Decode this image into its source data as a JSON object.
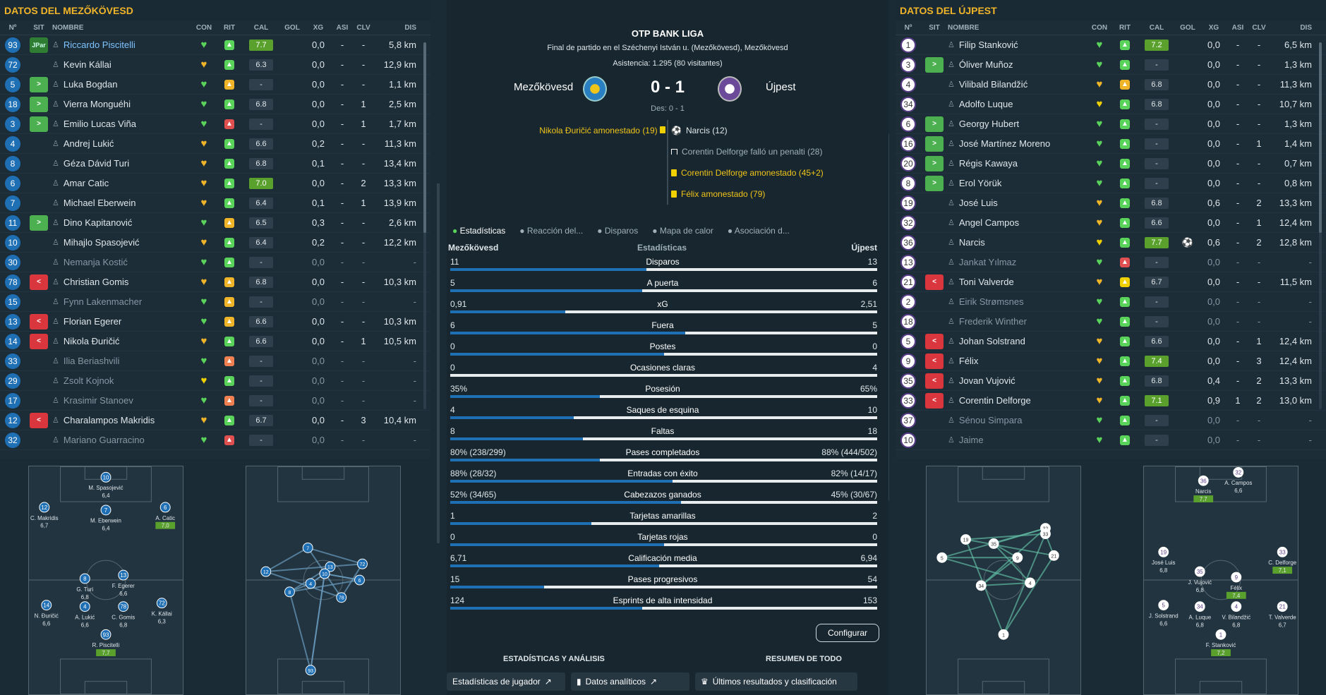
{
  "left": {
    "title": "DATOS DEL MEZŐKÖVESD",
    "headers": [
      "Nº",
      "SIT",
      "NOMBRE",
      "CON",
      "RIT",
      "CAL",
      "GOL",
      "XG",
      "ASI",
      "CLV",
      "DIS"
    ],
    "players": [
      {
        "num": "93",
        "sit": "JPar",
        "name": "Riccardo Piscitelli",
        "con": "#5ad35a",
        "rit": "#5ad35a",
        "cal": "7.7",
        "gol": "",
        "xg": "0,0",
        "asi": "-",
        "clv": "-",
        "dis": "5,8 km",
        "hi": true,
        "dim": false
      },
      {
        "num": "72",
        "sit": "",
        "name": "Kevin Kállai",
        "con": "#f0b429",
        "rit": "#5ad35a",
        "cal": "6.3",
        "gol": "",
        "xg": "0,0",
        "asi": "-",
        "clv": "-",
        "dis": "12,9 km",
        "hi": false,
        "dim": false
      },
      {
        "num": "5",
        "sit": "in",
        "name": "Luka Bogdan",
        "con": "#5ad35a",
        "rit": "#f0b429",
        "cal": "-",
        "gol": "",
        "xg": "0,0",
        "asi": "-",
        "clv": "-",
        "dis": "1,1 km",
        "hi": false,
        "dim": false
      },
      {
        "num": "18",
        "sit": "in",
        "name": "Vierra Monguéhi",
        "con": "#5ad35a",
        "rit": "#5ad35a",
        "cal": "6.8",
        "gol": "",
        "xg": "0,0",
        "asi": "-",
        "clv": "1",
        "dis": "2,5 km",
        "hi": false,
        "dim": false
      },
      {
        "num": "3",
        "sit": "in",
        "name": "Emilio Lucas Viña",
        "con": "#5ad35a",
        "rit": "#e05050",
        "cal": "-",
        "gol": "",
        "xg": "0,0",
        "asi": "-",
        "clv": "1",
        "dis": "1,7 km",
        "hi": false,
        "dim": false
      },
      {
        "num": "4",
        "sit": "",
        "name": "Andrej Lukić",
        "con": "#f0b429",
        "rit": "#5ad35a",
        "cal": "6.6",
        "gol": "",
        "xg": "0,2",
        "asi": "-",
        "clv": "-",
        "dis": "11,3 km",
        "hi": false,
        "dim": false
      },
      {
        "num": "8",
        "sit": "",
        "name": "Géza Dávid Turi",
        "con": "#f0b429",
        "rit": "#5ad35a",
        "cal": "6.8",
        "gol": "",
        "xg": "0,1",
        "asi": "-",
        "clv": "-",
        "dis": "13,4 km",
        "hi": false,
        "dim": false
      },
      {
        "num": "6",
        "sit": "",
        "name": "Amar Catic",
        "con": "#f0b429",
        "rit": "#5ad35a",
        "cal": "7.0",
        "gol": "",
        "xg": "0,0",
        "asi": "-",
        "clv": "2",
        "dis": "13,3 km",
        "hi": true,
        "dim": false
      },
      {
        "num": "7",
        "sit": "",
        "name": "Michael Eberwein",
        "con": "#f0b429",
        "rit": "#5ad35a",
        "cal": "6.4",
        "gol": "",
        "xg": "0,1",
        "asi": "-",
        "clv": "1",
        "dis": "13,9 km",
        "hi": false,
        "dim": false
      },
      {
        "num": "11",
        "sit": "in",
        "name": "Dino Kapitanović",
        "con": "#5ad35a",
        "rit": "#f0b429",
        "cal": "6.5",
        "gol": "",
        "xg": "0,3",
        "asi": "-",
        "clv": "-",
        "dis": "2,6 km",
        "hi": false,
        "dim": false
      },
      {
        "num": "10",
        "sit": "",
        "name": "Mihajlo Spasojević",
        "con": "#f0b429",
        "rit": "#5ad35a",
        "cal": "6.4",
        "gol": "",
        "xg": "0,2",
        "asi": "-",
        "clv": "-",
        "dis": "12,2 km",
        "hi": false,
        "dim": false
      },
      {
        "num": "30",
        "sit": "",
        "name": "Nemanja Kostić",
        "con": "#5ad35a",
        "rit": "#5ad35a",
        "cal": "-",
        "gol": "",
        "xg": "0,0",
        "asi": "-",
        "clv": "-",
        "dis": "-",
        "hi": false,
        "dim": true
      },
      {
        "num": "78",
        "sit": "out",
        "name": "Christian Gomis",
        "con": "#f0b429",
        "rit": "#f0b429",
        "cal": "6.8",
        "gol": "",
        "xg": "0,0",
        "asi": "-",
        "clv": "-",
        "dis": "10,3 km",
        "hi": false,
        "dim": false
      },
      {
        "num": "15",
        "sit": "",
        "name": "Fynn Lakenmacher",
        "con": "#5ad35a",
        "rit": "#f0b429",
        "cal": "-",
        "gol": "",
        "xg": "0,0",
        "asi": "-",
        "clv": "-",
        "dis": "-",
        "hi": false,
        "dim": true
      },
      {
        "num": "13",
        "sit": "out",
        "name": "Florian Egerer",
        "con": "#5ad35a",
        "rit": "#f0b429",
        "cal": "6.6",
        "gol": "",
        "xg": "0,0",
        "asi": "-",
        "clv": "-",
        "dis": "10,3 km",
        "hi": false,
        "dim": false
      },
      {
        "num": "14",
        "sit": "out",
        "name": "Nikola Đuričić",
        "con": "#f0b429",
        "rit": "#5ad35a",
        "cal": "6.6",
        "gol": "",
        "xg": "0,0",
        "asi": "-",
        "clv": "1",
        "dis": "10,5 km",
        "hi": false,
        "dim": false
      },
      {
        "num": "33",
        "sit": "",
        "name": "Ilia Beriashvili",
        "con": "#5ad35a",
        "rit": "#f08050",
        "cal": "-",
        "gol": "",
        "xg": "0,0",
        "asi": "-",
        "clv": "-",
        "dis": "-",
        "hi": false,
        "dim": true
      },
      {
        "num": "29",
        "sit": "",
        "name": "Zsolt Kojnok",
        "con": "#f0d000",
        "rit": "#5ad35a",
        "cal": "-",
        "gol": "",
        "xg": "0,0",
        "asi": "-",
        "clv": "-",
        "dis": "-",
        "hi": false,
        "dim": true
      },
      {
        "num": "17",
        "sit": "",
        "name": "Krasimir Stanoev",
        "con": "#5ad35a",
        "rit": "#f08050",
        "cal": "-",
        "gol": "",
        "xg": "0,0",
        "asi": "-",
        "clv": "-",
        "dis": "-",
        "hi": false,
        "dim": true
      },
      {
        "num": "12",
        "sit": "out",
        "name": "Charalampos Makridis",
        "con": "#f0b429",
        "rit": "#5ad35a",
        "cal": "6.7",
        "gol": "",
        "xg": "0,0",
        "asi": "-",
        "clv": "3",
        "dis": "10,4 km",
        "hi": false,
        "dim": false
      },
      {
        "num": "32",
        "sit": "",
        "name": "Mariano Guarracino",
        "con": "#5ad35a",
        "rit": "#e05050",
        "cal": "-",
        "gol": "",
        "xg": "0,0",
        "asi": "-",
        "clv": "-",
        "dis": "-",
        "hi": false,
        "dim": true
      }
    ]
  },
  "right": {
    "title": "DATOS DEL ÚJPEST",
    "headers": [
      "Nº",
      "SIT",
      "NOMBRE",
      "CON",
      "RIT",
      "CAL",
      "GOL",
      "XG",
      "ASI",
      "CLV",
      "DIS"
    ],
    "players": [
      {
        "num": "1",
        "sit": "",
        "name": "Filip Stanković",
        "con": "#5ad35a",
        "rit": "#5ad35a",
        "cal": "7.2",
        "gol": "",
        "xg": "0,0",
        "asi": "-",
        "clv": "-",
        "dis": "6,5 km",
        "hi": true,
        "dim": false
      },
      {
        "num": "3",
        "sit": "in",
        "name": "Óliver Muñoz",
        "con": "#5ad35a",
        "rit": "#5ad35a",
        "cal": "-",
        "gol": "",
        "xg": "0,0",
        "asi": "-",
        "clv": "-",
        "dis": "1,3 km",
        "hi": false,
        "dim": false
      },
      {
        "num": "4",
        "sit": "",
        "name": "Vilibald Bilandžić",
        "con": "#f0b429",
        "rit": "#f0b429",
        "cal": "6.8",
        "gol": "",
        "xg": "0,0",
        "asi": "-",
        "clv": "-",
        "dis": "11,3 km",
        "hi": false,
        "dim": false
      },
      {
        "num": "34",
        "sit": "",
        "name": "Adolfo Luque",
        "con": "#f0d000",
        "rit": "#5ad35a",
        "cal": "6.8",
        "gol": "",
        "xg": "0,0",
        "asi": "-",
        "clv": "-",
        "dis": "10,7 km",
        "hi": false,
        "dim": false
      },
      {
        "num": "6",
        "sit": "in",
        "name": "Georgy Hubert",
        "con": "#5ad35a",
        "rit": "#5ad35a",
        "cal": "-",
        "gol": "",
        "xg": "0,0",
        "asi": "-",
        "clv": "-",
        "dis": "1,3 km",
        "hi": false,
        "dim": false
      },
      {
        "num": "16",
        "sit": "in",
        "name": "José Martínez Moreno",
        "con": "#5ad35a",
        "rit": "#5ad35a",
        "cal": "-",
        "gol": "",
        "xg": "0,0",
        "asi": "-",
        "clv": "1",
        "dis": "1,4 km",
        "hi": false,
        "dim": false
      },
      {
        "num": "20",
        "sit": "in",
        "name": "Régis Kawaya",
        "con": "#5ad35a",
        "rit": "#5ad35a",
        "cal": "-",
        "gol": "",
        "xg": "0,0",
        "asi": "-",
        "clv": "-",
        "dis": "0,7 km",
        "hi": false,
        "dim": false
      },
      {
        "num": "8",
        "sit": "in",
        "name": "Erol Yörük",
        "con": "#5ad35a",
        "rit": "#5ad35a",
        "cal": "-",
        "gol": "",
        "xg": "0,0",
        "asi": "-",
        "clv": "-",
        "dis": "0,8 km",
        "hi": false,
        "dim": false
      },
      {
        "num": "19",
        "sit": "",
        "name": "José Luis",
        "con": "#f0b429",
        "rit": "#5ad35a",
        "cal": "6.8",
        "gol": "",
        "xg": "0,6",
        "asi": "-",
        "clv": "2",
        "dis": "13,3 km",
        "hi": false,
        "dim": false
      },
      {
        "num": "32",
        "sit": "",
        "name": "Angel Campos",
        "con": "#f0b429",
        "rit": "#5ad35a",
        "cal": "6.6",
        "gol": "",
        "xg": "0,0",
        "asi": "-",
        "clv": "1",
        "dis": "12,4 km",
        "hi": false,
        "dim": false
      },
      {
        "num": "36",
        "sit": "",
        "name": "Narcis",
        "con": "#f0d000",
        "rit": "#5ad35a",
        "cal": "7.7",
        "gol": "⚽",
        "xg": "0,6",
        "asi": "-",
        "clv": "2",
        "dis": "12,8 km",
        "hi": true,
        "dim": false
      },
      {
        "num": "13",
        "sit": "",
        "name": "Jankat Yılmaz",
        "con": "#5ad35a",
        "rit": "#e05050",
        "cal": "-",
        "gol": "",
        "xg": "0,0",
        "asi": "-",
        "clv": "-",
        "dis": "-",
        "hi": false,
        "dim": true
      },
      {
        "num": "21",
        "sit": "out",
        "name": "Toni Valverde",
        "con": "#f0b429",
        "rit": "#f0d000",
        "cal": "6.7",
        "gol": "",
        "xg": "0,0",
        "asi": "-",
        "clv": "-",
        "dis": "11,5 km",
        "hi": false,
        "dim": false
      },
      {
        "num": "2",
        "sit": "",
        "name": "Eirik Strømsnes",
        "con": "#5ad35a",
        "rit": "#5ad35a",
        "cal": "-",
        "gol": "",
        "xg": "0,0",
        "asi": "-",
        "clv": "-",
        "dis": "-",
        "hi": false,
        "dim": true
      },
      {
        "num": "18",
        "sit": "",
        "name": "Frederik Winther",
        "con": "#5ad35a",
        "rit": "#5ad35a",
        "cal": "-",
        "gol": "",
        "xg": "0,0",
        "asi": "-",
        "clv": "-",
        "dis": "-",
        "hi": false,
        "dim": true
      },
      {
        "num": "5",
        "sit": "out",
        "name": "Johan Solstrand",
        "con": "#f0b429",
        "rit": "#5ad35a",
        "cal": "6.6",
        "gol": "",
        "xg": "0,0",
        "asi": "-",
        "clv": "1",
        "dis": "12,4 km",
        "hi": false,
        "dim": false
      },
      {
        "num": "9",
        "sit": "out",
        "name": "Félix",
        "con": "#f0b429",
        "rit": "#5ad35a",
        "cal": "7.4",
        "gol": "",
        "xg": "0,0",
        "asi": "-",
        "clv": "3",
        "dis": "12,4 km",
        "hi": true,
        "dim": false
      },
      {
        "num": "35",
        "sit": "out",
        "name": "Jovan Vujović",
        "con": "#f0b429",
        "rit": "#5ad35a",
        "cal": "6.8",
        "gol": "",
        "xg": "0,4",
        "asi": "-",
        "clv": "2",
        "dis": "13,3 km",
        "hi": false,
        "dim": false
      },
      {
        "num": "33",
        "sit": "out",
        "name": "Corentin Delforge",
        "con": "#f0b429",
        "rit": "#5ad35a",
        "cal": "7.1",
        "gol": "",
        "xg": "0,9",
        "asi": "1",
        "clv": "2",
        "dis": "13,0 km",
        "hi": true,
        "dim": false
      },
      {
        "num": "37",
        "sit": "",
        "name": "Sénou Simpara",
        "con": "#5ad35a",
        "rit": "#5ad35a",
        "cal": "-",
        "gol": "",
        "xg": "0,0",
        "asi": "-",
        "clv": "-",
        "dis": "-",
        "hi": false,
        "dim": true
      },
      {
        "num": "10",
        "sit": "",
        "name": "Jaime",
        "con": "#5ad35a",
        "rit": "#5ad35a",
        "cal": "-",
        "gol": "",
        "xg": "0,0",
        "asi": "-",
        "clv": "-",
        "dis": "-",
        "hi": false,
        "dim": true
      }
    ]
  },
  "match": {
    "league": "OTP BANK LIGA",
    "venue": "Final de partido en el Széchenyi István u. (Mezőkövesd), Mezőkövesd",
    "attendance": "Asistencia: 1.295 (80 visitantes)",
    "home": "Mezőkövesd",
    "away": "Újpest",
    "score": "0 - 1",
    "halftime": "Des: 0 - 1",
    "events_home": [
      "Nikola Đuričić amonestado (19)"
    ],
    "events_away": [
      "Narcis (12)",
      "Corentin Delforge falló un penalti (28)",
      "Corentin Delforge amonestado (45+2)",
      "Félix amonestado (79)"
    ]
  },
  "tabs": [
    "Estadísticas",
    "Reacción del...",
    "Disparos",
    "Mapa de calor",
    "Asociación d..."
  ],
  "stats_header": {
    "home": "Mezőkövesd",
    "title": "Estadísticas",
    "away": "Újpest"
  },
  "stats": [
    {
      "name": "Disparos",
      "home": "11",
      "away": "13",
      "share": 0.46
    },
    {
      "name": "A puerta",
      "home": "5",
      "away": "6",
      "share": 0.45
    },
    {
      "name": "xG",
      "home": "0,91",
      "away": "2,51",
      "share": 0.27
    },
    {
      "name": "Fuera",
      "home": "6",
      "away": "5",
      "share": 0.55
    },
    {
      "name": "Postes",
      "home": "0",
      "away": "0",
      "share": 0.5
    },
    {
      "name": "Ocasiones claras",
      "home": "0",
      "away": "4",
      "share": 0.0
    },
    {
      "name": "Posesión",
      "home": "35%",
      "away": "65%",
      "share": 0.35
    },
    {
      "name": "Saques de esquina",
      "home": "4",
      "away": "10",
      "share": 0.29
    },
    {
      "name": "Faltas",
      "home": "8",
      "away": "18",
      "share": 0.31
    },
    {
      "name": "Pases completados",
      "home": "80% (238/299)",
      "away": "88% (444/502)",
      "share": 0.35
    },
    {
      "name": "Entradas con éxito",
      "home": "88% (28/32)",
      "away": "82% (14/17)",
      "share": 0.52
    },
    {
      "name": "Cabezazos ganados",
      "home": "52% (34/65)",
      "away": "45% (30/67)",
      "share": 0.54
    },
    {
      "name": "Tarjetas amarillas",
      "home": "1",
      "away": "2",
      "share": 0.33
    },
    {
      "name": "Tarjetas rojas",
      "home": "0",
      "away": "0",
      "share": 0.5
    },
    {
      "name": "Calificación media",
      "home": "6,71",
      "away": "6,94",
      "share": 0.49
    },
    {
      "name": "Pases progresivos",
      "home": "15",
      "away": "54",
      "share": 0.22
    },
    {
      "name": "Esprints de alta intensidad",
      "home": "124",
      "away": "153",
      "share": 0.45
    }
  ],
  "buttons": {
    "config": "Configurar",
    "section1": "ESTADÍSTICAS Y ANÁLISIS",
    "section2": "RESUMEN DE TODO",
    "player_stats": "Estadísticas de jugador",
    "analytics": "Datos analíticos",
    "results": "Últimos resultados y clasificación"
  },
  "home_formation": [
    {
      "num": "10",
      "label": "M. Spasojević",
      "rating": "6,4",
      "hi": false
    },
    {
      "num": "12",
      "label": "C. Makridis",
      "rating": "6,7",
      "hi": false
    },
    {
      "num": "7",
      "label": "M. Eberwein",
      "rating": "6,4",
      "hi": false
    },
    {
      "num": "6",
      "label": "A. Catic",
      "rating": "7,0",
      "hi": true
    },
    {
      "num": "8",
      "label": "G. Turi",
      "rating": "6,8",
      "hi": false
    },
    {
      "num": "13",
      "label": "F. Egerer",
      "rating": "6,6",
      "hi": false
    },
    {
      "num": "14",
      "label": "N. Đuričić",
      "rating": "6,6",
      "hi": false
    },
    {
      "num": "4",
      "label": "A. Lukić",
      "rating": "6,6",
      "hi": false
    },
    {
      "num": "78",
      "label": "C. Gomis",
      "rating": "6,8",
      "hi": false
    },
    {
      "num": "72",
      "label": "K. Kállai",
      "rating": "6,3",
      "hi": false
    },
    {
      "num": "93",
      "label": "R. Piscitelli",
      "rating": "7,7",
      "hi": true
    }
  ],
  "away_formation": [
    {
      "num": "36",
      "label": "Narcis",
      "rating": "7,7",
      "hi": true
    },
    {
      "num": "32",
      "label": "A. Campos",
      "rating": "6,6",
      "hi": false
    },
    {
      "num": "19",
      "label": "José Luis",
      "rating": "6,8",
      "hi": false
    },
    {
      "num": "35",
      "label": "J. Vujović",
      "rating": "6,8",
      "hi": false
    },
    {
      "num": "9",
      "label": "Félix",
      "rating": "7,4",
      "hi": true
    },
    {
      "num": "33",
      "label": "C. Delforge",
      "rating": "7,1",
      "hi": true
    },
    {
      "num": "5",
      "label": "J. Solstrand",
      "rating": "6,6",
      "hi": false
    },
    {
      "num": "34",
      "label": "A. Luque",
      "rating": "6,8",
      "hi": false
    },
    {
      "num": "4",
      "label": "V. Bilandžić",
      "rating": "6,8",
      "hi": false
    },
    {
      "num": "21",
      "label": "T. Valverde",
      "rating": "6,7",
      "hi": false
    },
    {
      "num": "1",
      "label": "F. Stanković",
      "rating": "7,2",
      "hi": true
    }
  ],
  "home_network_nodes": [
    "7",
    "13",
    "14",
    "12",
    "4",
    "10",
    "72",
    "6",
    "8",
    "78",
    "93"
  ],
  "away_network_nodes": [
    "19",
    "35",
    "32",
    "33",
    "5",
    "9",
    "21",
    "34",
    "4",
    "1"
  ],
  "colors": {
    "accent": "#f0b429",
    "home": "#1f6fb5",
    "away": "#6b4a9a",
    "positive": "#5aa02c"
  }
}
